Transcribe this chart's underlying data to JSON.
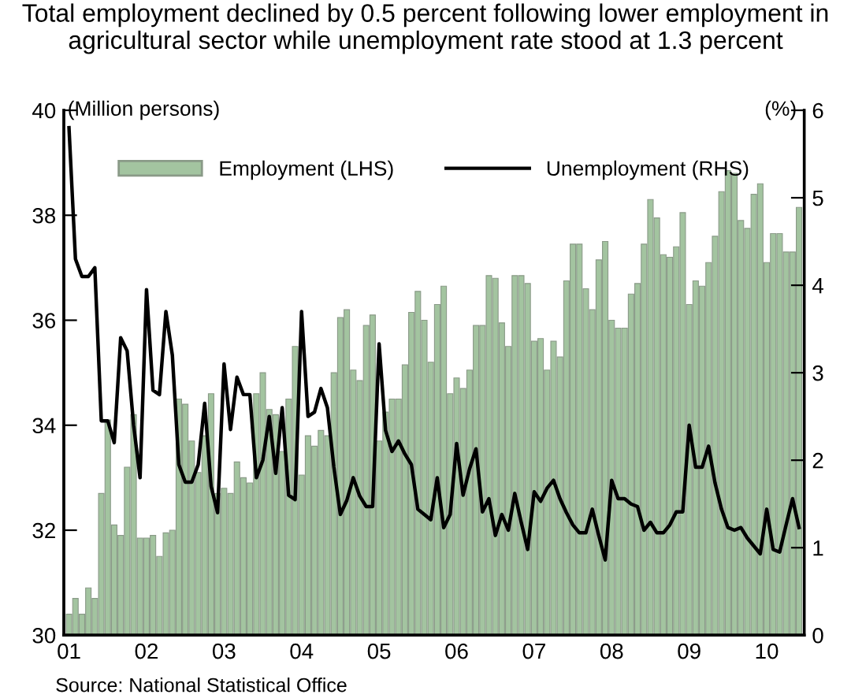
{
  "chart_data": {
    "type": "bar",
    "title": "Total employment declined by 0.5 percent following lower employment in agricultural sector while unemployment rate stood at 1.3 percent",
    "ylabel": "(Million persons)",
    "y2label": "(%)",
    "annotations": [
      "Source: National Statistical Office"
    ],
    "categories": [
      "01",
      null,
      null,
      null,
      null,
      null,
      null,
      null,
      null,
      null,
      null,
      null,
      "02",
      null,
      null,
      null,
      null,
      null,
      null,
      null,
      null,
      null,
      null,
      null,
      "03",
      null,
      null,
      null,
      null,
      null,
      null,
      null,
      null,
      null,
      null,
      null,
      "04",
      null,
      null,
      null,
      null,
      null,
      null,
      null,
      null,
      null,
      null,
      null,
      "05",
      null,
      null,
      null,
      null,
      null,
      null,
      null,
      null,
      null,
      null,
      null,
      "06",
      null,
      null,
      null,
      null,
      null,
      null,
      null,
      null,
      null,
      null,
      null,
      "07",
      null,
      null,
      null,
      null,
      null,
      null,
      null,
      null,
      null,
      null,
      null,
      "08",
      null,
      null,
      null,
      null,
      null,
      null,
      null,
      null,
      null,
      null,
      null,
      "09",
      null,
      null,
      null,
      null,
      null,
      null,
      null,
      null,
      null,
      null,
      null,
      "10",
      null,
      null,
      null,
      null,
      null
    ],
    "series": [
      {
        "name": "Employment (LHS)",
        "color": "#a3c4a0",
        "values": [
          30.4,
          30.7,
          30.4,
          30.9,
          30.7,
          32.7,
          34.1,
          32.1,
          31.9,
          33.2,
          34.2,
          31.85,
          31.85,
          31.9,
          31.5,
          31.95,
          32.0,
          34.5,
          34.4,
          33.7,
          33.1,
          33.8,
          34.6,
          32.7,
          32.8,
          32.7,
          33.3,
          33.0,
          32.9,
          34.6,
          35.0,
          34.3,
          34.2,
          33.5,
          34.5,
          35.5,
          33.05,
          33.8,
          33.6,
          33.9,
          33.8,
          35.0,
          36.05,
          36.2,
          35.05,
          34.85,
          35.9,
          36.1,
          33.7,
          34.25,
          34.5,
          34.5,
          35.15,
          36.15,
          36.55,
          36.0,
          35.2,
          36.3,
          36.65,
          34.6,
          34.9,
          34.7,
          35.05,
          35.9,
          35.9,
          36.85,
          36.8,
          35.95,
          35.5,
          36.85,
          36.85,
          36.7,
          35.6,
          35.65,
          35.05,
          35.6,
          35.3,
          36.75,
          37.45,
          37.45,
          36.6,
          36.2,
          37.15,
          37.5,
          36.0,
          35.85,
          35.85,
          36.5,
          36.7,
          37.45,
          38.3,
          37.95,
          37.25,
          37.2,
          37.4,
          38.05,
          36.3,
          36.75,
          36.65,
          37.1,
          37.6,
          38.45,
          38.85,
          38.8,
          37.9,
          37.75,
          38.4,
          38.6,
          37.1,
          37.65,
          37.65,
          37.3,
          37.3,
          38.15
        ]
      },
      {
        "name": "Unemployment (RHS)",
        "type": "line",
        "axis": "y2",
        "color": "#000000",
        "values": [
          5.8,
          4.3,
          4.1,
          4.1,
          4.2,
          2.45,
          2.45,
          2.2,
          3.4,
          3.25,
          2.4,
          1.8,
          3.95,
          2.8,
          2.75,
          3.7,
          3.2,
          1.95,
          1.75,
          1.75,
          1.95,
          2.65,
          1.7,
          1.4,
          3.1,
          2.35,
          2.95,
          2.75,
          2.75,
          1.8,
          2.0,
          2.5,
          1.85,
          2.6,
          1.6,
          1.55,
          3.7,
          2.5,
          2.55,
          2.82,
          2.6,
          1.92,
          1.38,
          1.54,
          1.8,
          1.59,
          1.47,
          1.47,
          3.33,
          2.34,
          2.1,
          2.22,
          2.07,
          1.95,
          1.44,
          1.38,
          1.32,
          1.8,
          1.23,
          1.38,
          2.19,
          1.6,
          1.9,
          2.13,
          1.41,
          1.56,
          1.14,
          1.38,
          1.2,
          1.62,
          1.29,
          0.98,
          1.64,
          1.53,
          1.68,
          1.77,
          1.56,
          1.4,
          1.26,
          1.17,
          1.17,
          1.44,
          1.14,
          0.86,
          1.77,
          1.56,
          1.56,
          1.5,
          1.47,
          1.2,
          1.29,
          1.17,
          1.17,
          1.26,
          1.41,
          1.41,
          2.4,
          1.92,
          1.92,
          2.16,
          1.74,
          1.44,
          1.23,
          1.2,
          1.23,
          1.11,
          1.02,
          0.93,
          1.44,
          0.98,
          0.95,
          1.26,
          1.56,
          1.23
        ]
      }
    ],
    "ylim": [
      30,
      40
    ],
    "yticks": [
      30,
      32,
      34,
      36,
      38,
      40
    ],
    "y2lim": [
      0,
      6
    ],
    "y2ticks": [
      0,
      1,
      2,
      3,
      4,
      5,
      6
    ],
    "legend": "top"
  }
}
